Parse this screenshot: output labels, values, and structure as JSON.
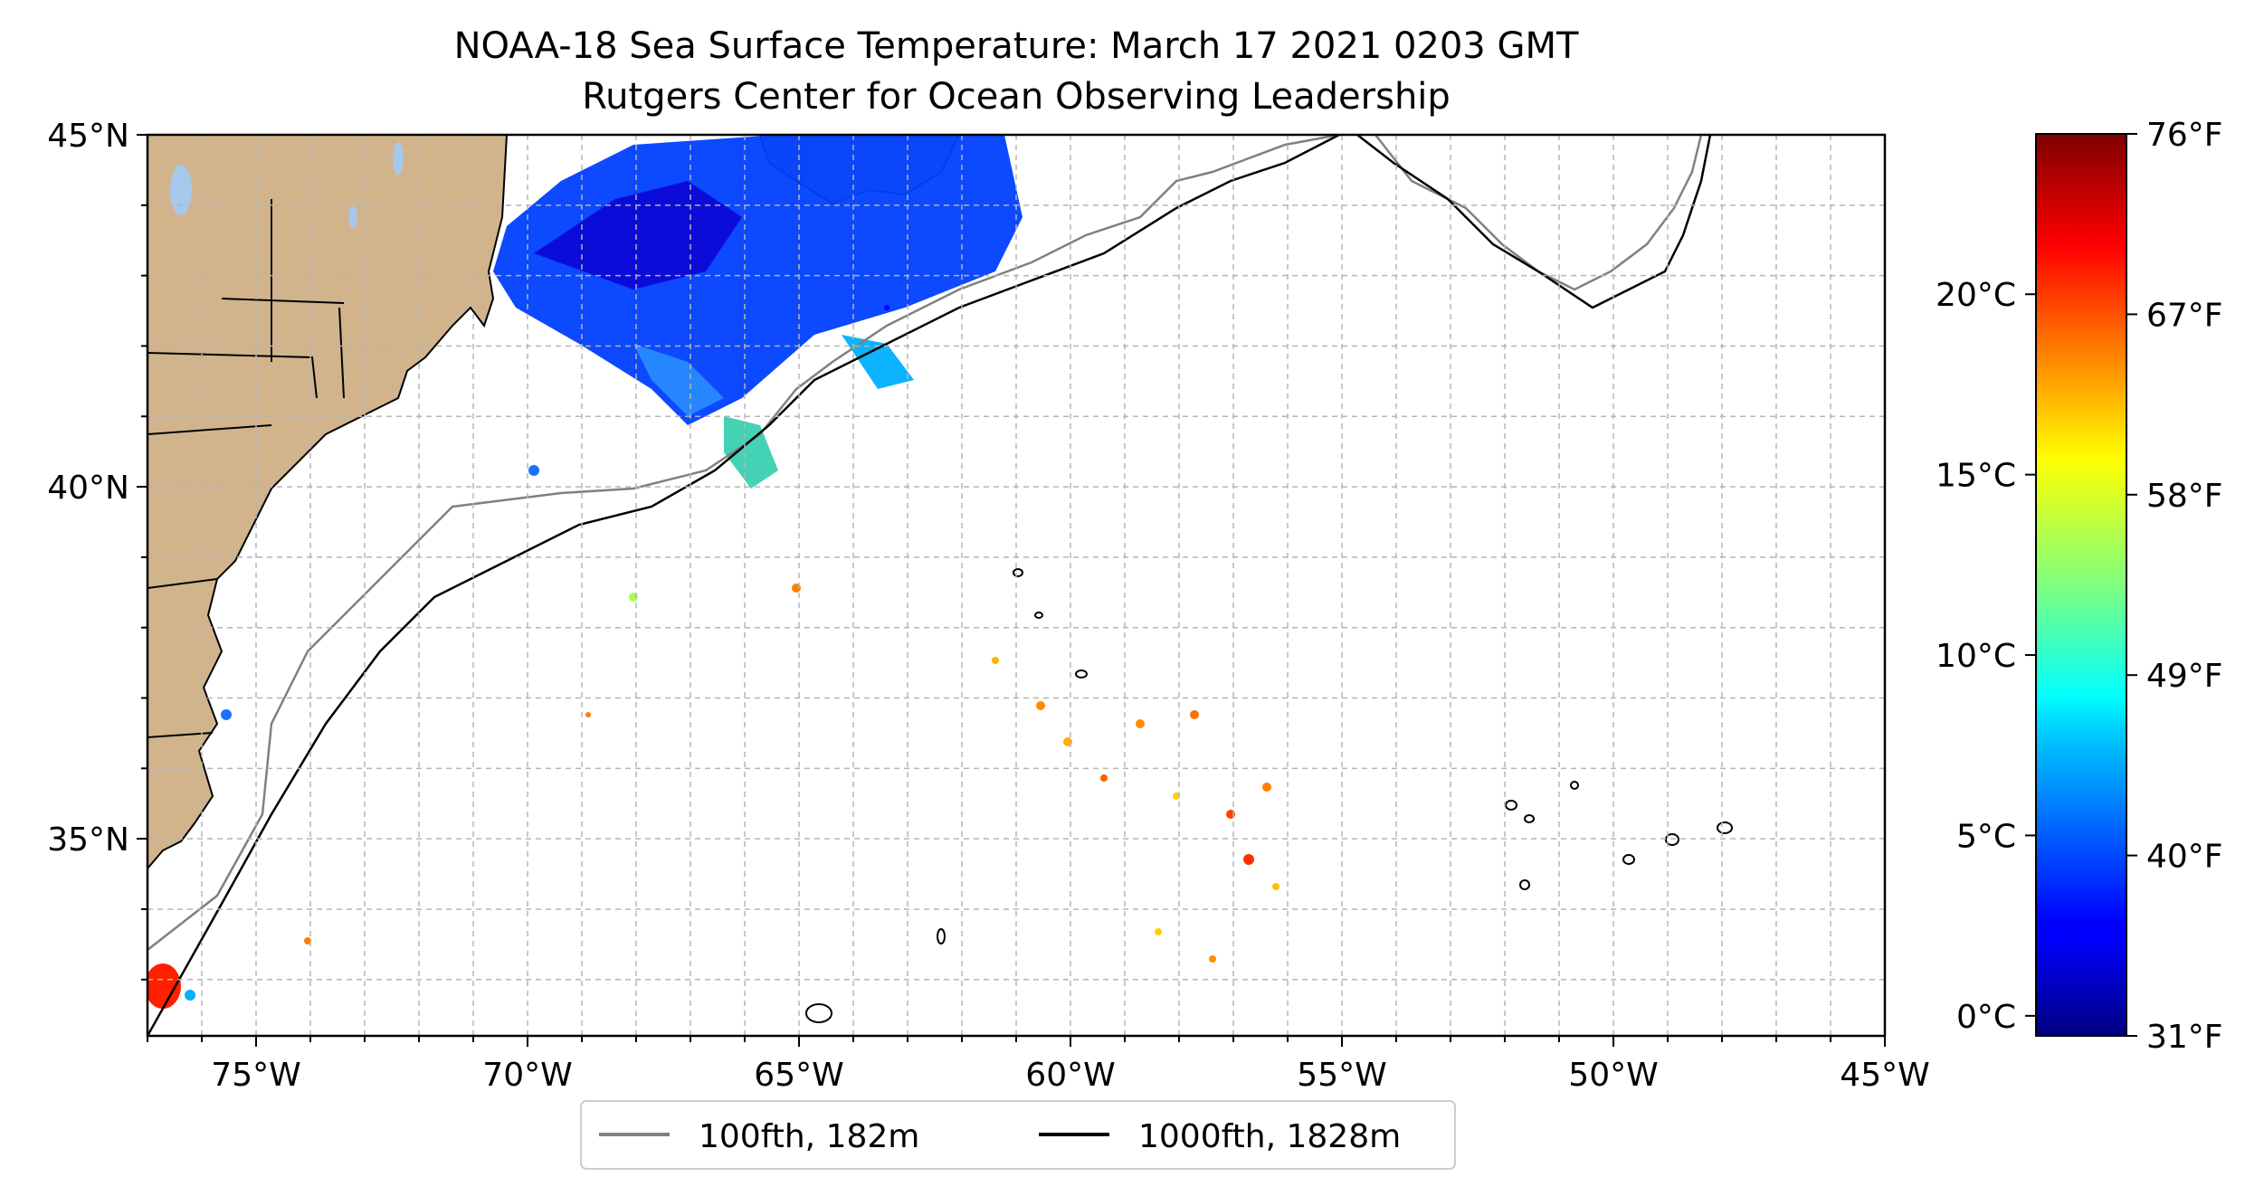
{
  "title": {
    "line1": "NOAA-18 Sea Surface Temperature: March 17 2021 0203 GMT",
    "line2": "Rutgers Center for Ocean Observing Leadership"
  },
  "map": {
    "lon_range": [
      -77,
      -45
    ],
    "lat_range": [
      32.2,
      45
    ],
    "lon_ticks": [
      {
        "value": -75,
        "label": "75°W"
      },
      {
        "value": -70,
        "label": "70°W"
      },
      {
        "value": -65,
        "label": "65°W"
      },
      {
        "value": -60,
        "label": "60°W"
      },
      {
        "value": -55,
        "label": "55°W"
      },
      {
        "value": -50,
        "label": "50°W"
      },
      {
        "value": -45,
        "label": "45°W"
      }
    ],
    "lat_ticks": [
      {
        "value": 35,
        "label": "35°N"
      },
      {
        "value": 40,
        "label": "40°N"
      },
      {
        "value": 45,
        "label": "45°N"
      }
    ],
    "gridlines": true,
    "grid_step_deg": 1,
    "land_color": "#d2b48c",
    "lake_color": "#a6c8ea",
    "isobath_100_color": "#808080",
    "isobath_1000_color": "#000000"
  },
  "legend": {
    "placement": "bottom-center",
    "items": [
      {
        "label": "100fth, 182m",
        "color": "#808080"
      },
      {
        "label": "1000fth, 1828m",
        "color": "#000000"
      }
    ]
  },
  "colorbar": {
    "colormap": "jet",
    "celsius_ticks": [
      {
        "value": 0,
        "label": "0°C"
      },
      {
        "value": 5,
        "label": "5°C"
      },
      {
        "value": 10,
        "label": "10°C"
      },
      {
        "value": 15,
        "label": "15°C"
      },
      {
        "value": 20,
        "label": "20°C"
      }
    ],
    "fahrenheit_ticks": [
      {
        "value": 31,
        "label": "31°F"
      },
      {
        "value": 40,
        "label": "40°F"
      },
      {
        "value": 49,
        "label": "49°F"
      },
      {
        "value": 58,
        "label": "58°F"
      },
      {
        "value": 67,
        "label": "67°F"
      },
      {
        "value": 76,
        "label": "76°F"
      }
    ]
  }
}
